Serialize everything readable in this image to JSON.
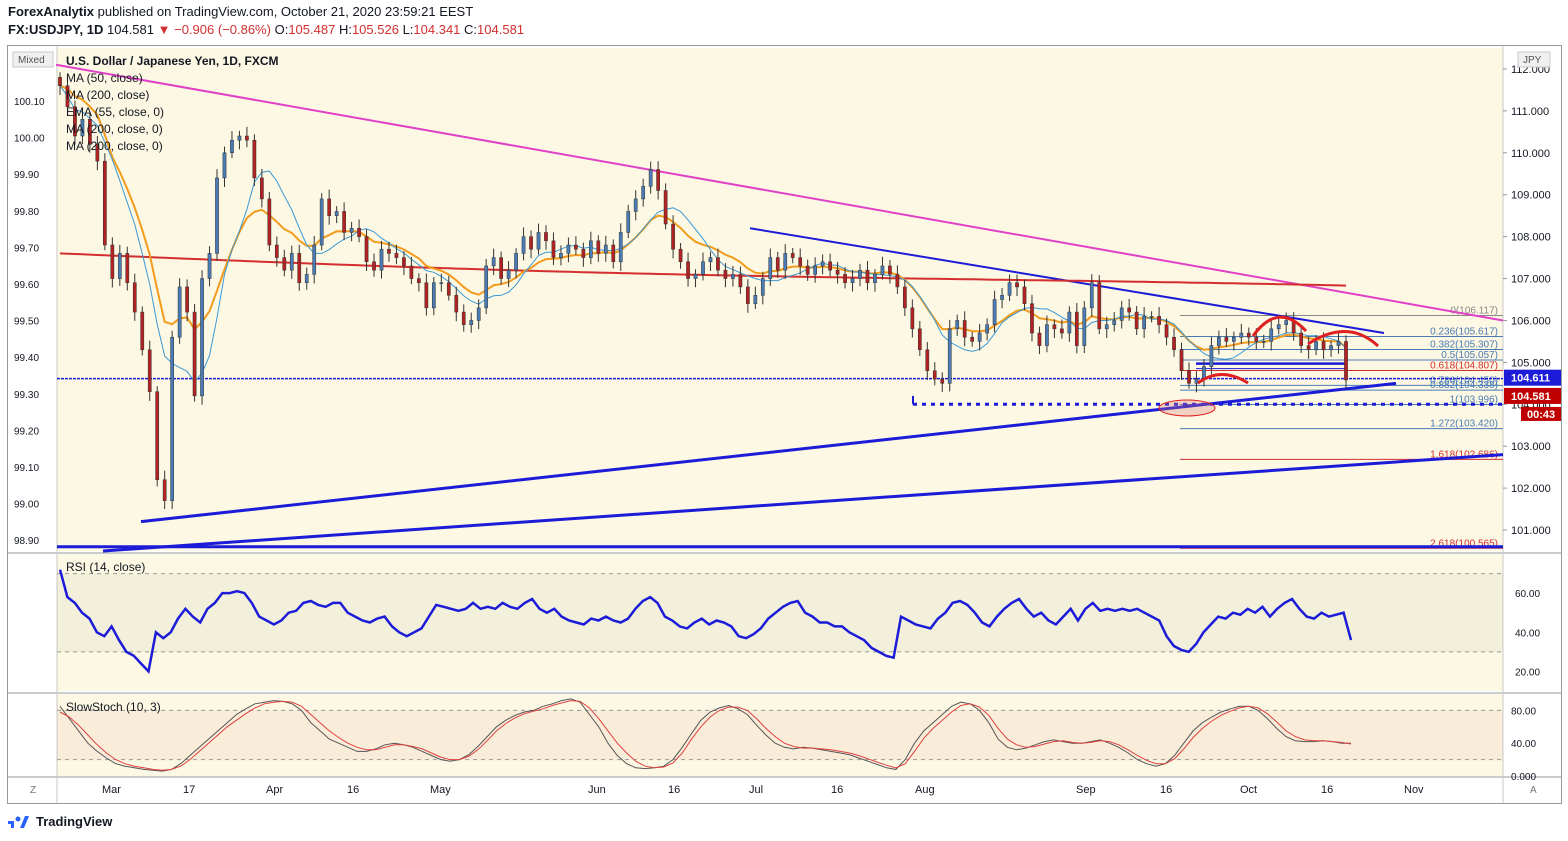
{
  "header": {
    "author": "ForexAnalytix",
    "published": "published on TradingView.com, October 21, 2020 23:59:21 EEST",
    "symbol": "FX:USDJPY, 1D",
    "last": "104.581",
    "change": "▼ −0.906 (−0.86%)",
    "o_label": "O:",
    "o": "105.487",
    "h_label": "H:",
    "h": "105.526",
    "l_label": "L:",
    "l": "104.341",
    "c_label": "C:",
    "c": "104.581"
  },
  "colors": {
    "plot_bg": "#fdf8e3",
    "up": "#4a7bb5",
    "down": "#b22222",
    "trendline": "#1c1cd8",
    "pink_line": "#e040c8",
    "ma200": "#d32f2f",
    "ema55": "#f29b1d",
    "ma50": "#3a98d4",
    "rsi": "#1c1cd8",
    "stoch_k": "#555555",
    "stoch_d": "#e04040",
    "fib_blue": "#4a7bb5",
    "fib_red": "#d32f2f"
  },
  "chart_data": {
    "type": "candlestick",
    "title": "U.S. Dollar / Japanese Yen, 1D, FXCM",
    "mode_label": "Mixed",
    "currency_label": "JPY",
    "indicators": [
      "MA (50, close)",
      "MA (200, close)",
      "EMA (55, close, 0)",
      "MA (200, close, 0)",
      "MA (200, close, 0)"
    ],
    "right_axis_ticks": [
      "112.000",
      "111.000",
      "110.000",
      "109.000",
      "108.000",
      "107.000",
      "106.000",
      "105.000",
      "104.000",
      "103.000",
      "102.000",
      "101.000"
    ],
    "left_axis_ticks": [
      "100.10",
      "100.00",
      "99.90",
      "99.80",
      "99.70",
      "99.60",
      "99.50",
      "99.40",
      "99.30",
      "99.20",
      "99.10",
      "99.00",
      "98.90"
    ],
    "x_axis_ticks": [
      "Mar",
      "17",
      "Apr",
      "16",
      "May",
      "Jun",
      "16",
      "Jul",
      "16",
      "Aug",
      "Sep",
      "16",
      "Oct",
      "16",
      "Nov"
    ],
    "price_range": [
      100.5,
      112.5
    ],
    "price_tag_upper": "104.611",
    "price_tag_last": "104.581",
    "countdown": "00:43",
    "fibonacci": [
      {
        "label": "0(106.117)",
        "price": 106.117
      },
      {
        "label": "0.236(105.617)",
        "price": 105.617
      },
      {
        "label": "0.382(105.307)",
        "price": 105.307
      },
      {
        "label": "0.5(105.057)",
        "price": 105.057
      },
      {
        "label": "0.618(104.807)",
        "price": 104.807
      },
      {
        "label": "0.786(104.450)",
        "price": 104.45
      },
      {
        "label": "0.882(104.338)",
        "price": 104.338
      },
      {
        "label": "1(103.996)",
        "price": 103.996
      },
      {
        "label": "1.272(103.420)",
        "price": 103.42
      },
      {
        "label": "1.618(102.686)",
        "price": 102.686
      },
      {
        "label": "2.618(100.565)",
        "price": 100.565
      }
    ],
    "closes": [
      111.6,
      111.1,
      110.4,
      110.8,
      110.2,
      109.8,
      107.8,
      107.0,
      107.6,
      106.9,
      106.2,
      105.3,
      104.3,
      102.2,
      101.7,
      105.6,
      106.8,
      106.2,
      104.2,
      107.0,
      107.6,
      109.4,
      110.0,
      110.3,
      110.4,
      110.3,
      109.4,
      108.9,
      107.8,
      107.5,
      107.2,
      107.6,
      106.9,
      107.1,
      107.8,
      108.9,
      108.5,
      108.6,
      108.1,
      108.2,
      108.0,
      107.4,
      107.2,
      107.7,
      107.6,
      107.5,
      107.3,
      107.0,
      106.9,
      106.3,
      106.9,
      106.9,
      106.6,
      106.2,
      105.9,
      106.0,
      106.3,
      107.3,
      107.5,
      107.0,
      107.2,
      107.6,
      108.0,
      107.7,
      108.1,
      107.9,
      107.5,
      107.6,
      107.8,
      107.7,
      107.5,
      107.9,
      107.6,
      107.8,
      107.4,
      108.1,
      108.6,
      108.9,
      109.2,
      109.6,
      109.1,
      108.3,
      107.7,
      107.4,
      107.0,
      107.1,
      107.4,
      107.5,
      107.2,
      107.0,
      107.1,
      106.8,
      106.4,
      106.6,
      107.0,
      107.5,
      107.2,
      107.6,
      107.5,
      107.3,
      107.1,
      107.3,
      107.4,
      107.2,
      107.1,
      106.9,
      107.0,
      107.2,
      106.9,
      107.1,
      107.3,
      107.1,
      106.8,
      106.3,
      105.8,
      105.3,
      104.8,
      104.6,
      104.5,
      105.8,
      106.0,
      105.6,
      105.5,
      105.7,
      105.9,
      106.5,
      106.6,
      106.9,
      106.8,
      106.4,
      105.7,
      105.4,
      105.9,
      105.8,
      105.7,
      106.2,
      105.4,
      106.3,
      106.9,
      105.8,
      105.9,
      106.0,
      106.3,
      106.2,
      105.8,
      106.1,
      106.1,
      105.9,
      105.6,
      105.3,
      104.8,
      104.5,
      104.6,
      104.9,
      105.4,
      105.6,
      105.5,
      105.6,
      105.7,
      105.6,
      105.5,
      105.5,
      105.8,
      105.9,
      106.0,
      105.7,
      105.4,
      105.3,
      105.5,
      105.3,
      105.4,
      105.5,
      104.58
    ],
    "rsi": {
      "label": "RSI (14, close)",
      "ticks": [
        "60.00",
        "40.00",
        "20.00"
      ],
      "values": [
        72,
        58,
        55,
        50,
        47,
        40,
        38,
        43,
        36,
        30,
        28,
        24,
        20,
        40,
        37,
        40,
        47,
        52,
        48,
        45,
        52,
        55,
        60,
        60,
        61,
        60,
        55,
        48,
        46,
        44,
        46,
        50,
        51,
        55,
        56,
        54,
        53,
        55,
        55,
        50,
        48,
        46,
        45,
        47,
        48,
        43,
        40,
        38,
        40,
        42,
        48,
        54,
        53,
        52,
        51,
        52,
        55,
        52,
        53,
        52,
        55,
        53,
        52,
        55,
        57,
        52,
        50,
        52,
        48,
        46,
        45,
        44,
        47,
        46,
        48,
        46,
        45,
        47,
        52,
        56,
        58,
        55,
        48,
        46,
        43,
        42,
        45,
        47,
        44,
        46,
        45,
        43,
        38,
        37,
        39,
        42,
        47,
        50,
        53,
        55,
        56,
        50,
        48,
        45,
        45,
        43,
        43,
        40,
        38,
        36,
        32,
        30,
        28,
        27,
        48,
        46,
        44,
        43,
        42,
        47,
        50,
        55,
        56,
        54,
        50,
        45,
        43,
        48,
        52,
        55,
        57,
        52,
        48,
        50,
        46,
        44,
        48,
        52,
        46,
        52,
        55,
        51,
        52,
        51,
        52,
        51,
        52,
        50,
        48,
        46,
        38,
        33,
        31,
        30,
        34,
        40,
        44,
        48,
        47,
        50,
        49,
        52,
        50,
        53,
        48,
        52,
        55,
        57,
        52,
        48,
        47,
        50,
        48,
        49,
        50,
        36
      ],
      "levels": [
        70,
        30
      ]
    },
    "stoch": {
      "label": "SlowStoch (10, 3)",
      "ticks": [
        "80.00",
        "40.00",
        "0.000"
      ],
      "k": [
        85,
        70,
        55,
        40,
        30,
        22,
        15,
        12,
        10,
        8,
        7,
        6,
        8,
        15,
        25,
        35,
        45,
        55,
        65,
        75,
        82,
        88,
        90,
        92,
        91,
        88,
        80,
        65,
        55,
        45,
        40,
        35,
        30,
        30,
        33,
        38,
        40,
        38,
        35,
        30,
        25,
        20,
        18,
        20,
        26,
        36,
        48,
        60,
        68,
        74,
        78,
        80,
        85,
        88,
        92,
        94,
        90,
        75,
        60,
        40,
        25,
        15,
        10,
        9,
        10,
        12,
        20,
        35,
        52,
        68,
        78,
        83,
        86,
        82,
        75,
        62,
        50,
        40,
        35,
        33,
        35,
        34,
        32,
        30,
        28,
        26,
        22,
        18,
        14,
        10,
        8,
        20,
        40,
        55,
        65,
        75,
        85,
        90,
        88,
        80,
        65,
        45,
        35,
        32,
        34,
        38,
        42,
        44,
        42,
        40,
        40,
        42,
        44,
        40,
        35,
        28,
        20,
        15,
        12,
        15,
        25,
        40,
        55,
        65,
        72,
        78,
        82,
        85,
        85,
        80,
        70,
        58,
        48,
        43,
        42,
        42,
        43,
        42,
        40,
        40
      ],
      "d": [
        78,
        72,
        62,
        50,
        38,
        28,
        20,
        15,
        12,
        10,
        8,
        7,
        8,
        12,
        20,
        30,
        40,
        50,
        60,
        68,
        76,
        83,
        88,
        90,
        91,
        90,
        85,
        75,
        65,
        55,
        47,
        40,
        35,
        32,
        32,
        35,
        38,
        38,
        36,
        33,
        28,
        23,
        20,
        20,
        24,
        32,
        43,
        55,
        64,
        71,
        76,
        79,
        82,
        86,
        89,
        92,
        91,
        83,
        70,
        55,
        40,
        28,
        18,
        12,
        10,
        11,
        16,
        28,
        45,
        60,
        72,
        80,
        84,
        84,
        80,
        70,
        58,
        48,
        40,
        36,
        34,
        34,
        33,
        32,
        30,
        28,
        25,
        21,
        17,
        13,
        10,
        15,
        30,
        46,
        58,
        68,
        78,
        86,
        88,
        84,
        74,
        58,
        45,
        38,
        35,
        36,
        39,
        42,
        43,
        41,
        40,
        41,
        43,
        42,
        38,
        32,
        25,
        19,
        15,
        15,
        21,
        33,
        47,
        58,
        67,
        74,
        79,
        83,
        85,
        83,
        76,
        66,
        55,
        48,
        44,
        43,
        43,
        42,
        41,
        39
      ],
      "levels": [
        80,
        20
      ]
    }
  },
  "footer": {
    "brand": "TradingView"
  }
}
